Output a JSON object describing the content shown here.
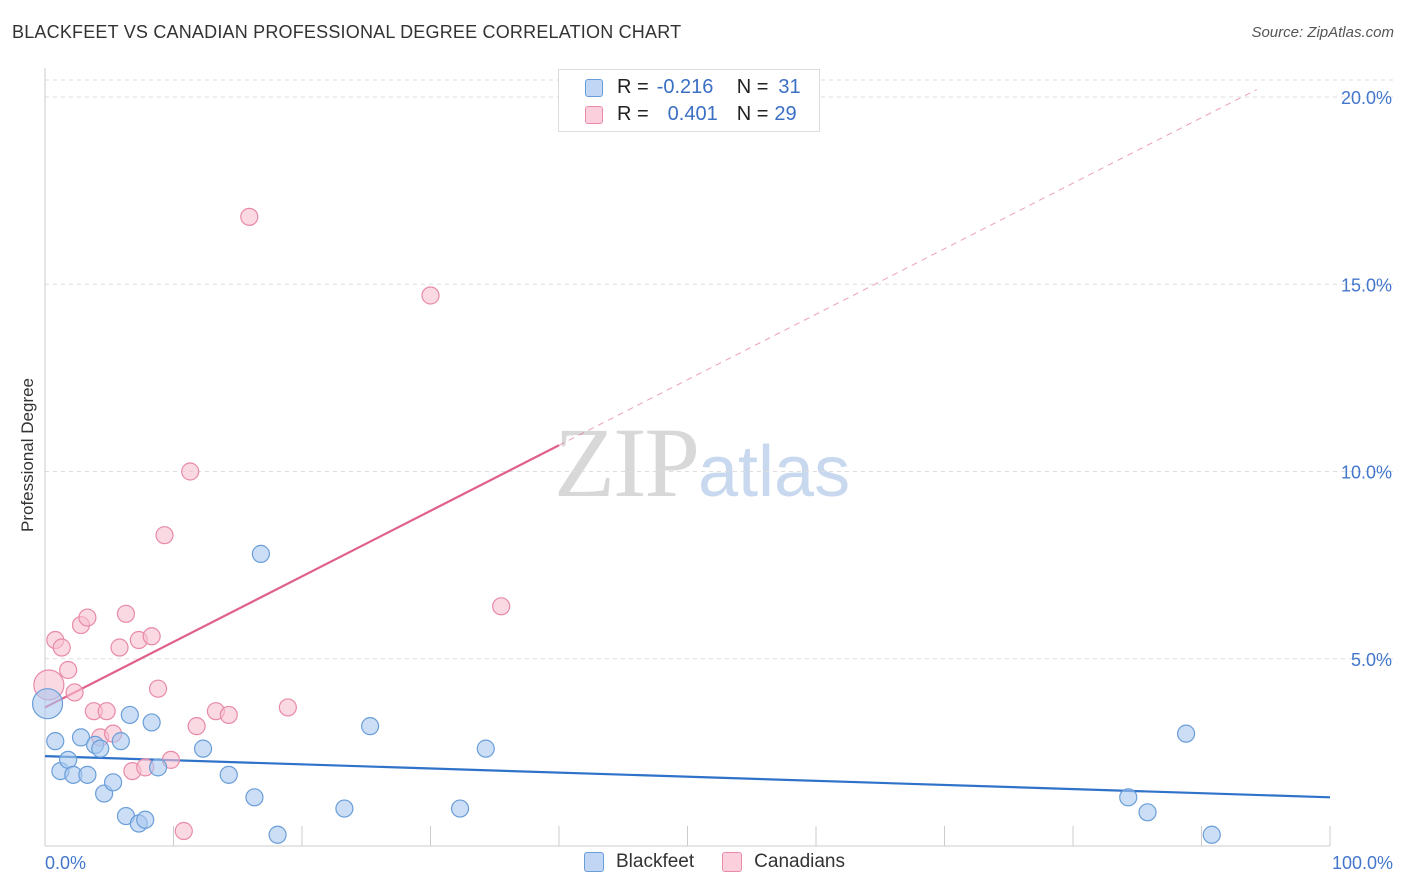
{
  "header": {
    "title": "BLACKFEET VS CANADIAN PROFESSIONAL DEGREE CORRELATION CHART",
    "source": "Source: ZipAtlas.com"
  },
  "watermark": {
    "zip": "ZIP",
    "atlas": "atlas"
  },
  "legend": {
    "rows": [
      {
        "r_label": "R =",
        "r_value": "-0.216",
        "n_label": "N =",
        "n_value": "31",
        "color": "#a8c8f0"
      },
      {
        "r_label": "R =",
        "r_value": "0.401",
        "n_label": "N =",
        "n_value": "29",
        "color": "#f8b8cc"
      }
    ]
  },
  "bottom_legend": {
    "blackfeet": "Blackfeet",
    "canadians": "Canadians"
  },
  "colors": {
    "blue_fill": "#a8c8f0",
    "blue_stroke": "#6a9ed8",
    "blue_line": "#2f72c9",
    "pink_fill": "#f8c0d0",
    "pink_stroke": "#e88aa8",
    "pink_line": "#e0608a",
    "grid": "#dddddd",
    "tick_text": "#4477cc"
  },
  "chart_data": {
    "type": "scatter",
    "title": "BLACKFEET VS CANADIAN PROFESSIONAL DEGREE CORRELATION CHART",
    "xlabel": "",
    "ylabel": "Professional Degree",
    "xlim": [
      0,
      100
    ],
    "ylim": [
      0,
      20
    ],
    "x_tick_labels": [
      "0.0%",
      "100.0%"
    ],
    "y_ticks": [
      5,
      10,
      15,
      20
    ],
    "y_tick_labels": [
      "5.0%",
      "10.0%",
      "15.0%",
      "20.0%"
    ],
    "grid": true,
    "series": [
      {
        "name": "Blackfeet",
        "r": -0.216,
        "n": 31,
        "points": [
          [
            0.2,
            3.8
          ],
          [
            0.8,
            2.8
          ],
          [
            1.2,
            2.0
          ],
          [
            1.8,
            2.3
          ],
          [
            2.2,
            1.9
          ],
          [
            2.8,
            2.9
          ],
          [
            3.3,
            1.9
          ],
          [
            3.9,
            2.7
          ],
          [
            4.3,
            2.6
          ],
          [
            4.6,
            1.4
          ],
          [
            5.3,
            1.7
          ],
          [
            5.9,
            2.8
          ],
          [
            6.3,
            0.8
          ],
          [
            6.6,
            3.5
          ],
          [
            7.3,
            0.6
          ],
          [
            7.8,
            0.7
          ],
          [
            8.3,
            3.3
          ],
          [
            8.8,
            2.1
          ],
          [
            12.3,
            2.6
          ],
          [
            14.3,
            1.9
          ],
          [
            16.3,
            1.3
          ],
          [
            16.8,
            7.8
          ],
          [
            18.1,
            0.3
          ],
          [
            23.3,
            1.0
          ],
          [
            25.3,
            3.2
          ],
          [
            32.3,
            1.0
          ],
          [
            34.3,
            2.6
          ],
          [
            84.3,
            1.3
          ],
          [
            85.8,
            0.9
          ],
          [
            88.8,
            3.0
          ],
          [
            90.8,
            0.3
          ]
        ],
        "trend": {
          "x": [
            0,
            100
          ],
          "y": [
            2.4,
            1.3
          ]
        }
      },
      {
        "name": "Canadians",
        "r": 0.401,
        "n": 29,
        "points": [
          [
            0.3,
            4.3
          ],
          [
            0.8,
            5.5
          ],
          [
            1.3,
            5.3
          ],
          [
            1.8,
            4.7
          ],
          [
            2.3,
            4.1
          ],
          [
            2.8,
            5.9
          ],
          [
            3.3,
            6.1
          ],
          [
            3.8,
            3.6
          ],
          [
            4.3,
            2.9
          ],
          [
            4.8,
            3.6
          ],
          [
            5.3,
            3.0
          ],
          [
            5.8,
            5.3
          ],
          [
            6.3,
            6.2
          ],
          [
            6.8,
            2.0
          ],
          [
            7.3,
            5.5
          ],
          [
            7.8,
            2.1
          ],
          [
            8.3,
            5.6
          ],
          [
            8.8,
            4.2
          ],
          [
            9.3,
            8.3
          ],
          [
            9.8,
            2.3
          ],
          [
            10.8,
            0.4
          ],
          [
            11.3,
            10.0
          ],
          [
            11.8,
            3.2
          ],
          [
            13.3,
            3.6
          ],
          [
            14.3,
            3.5
          ],
          [
            15.9,
            16.8
          ],
          [
            18.9,
            3.7
          ],
          [
            30.0,
            14.7
          ],
          [
            35.5,
            6.4
          ]
        ],
        "trend": {
          "x": [
            0,
            40
          ],
          "y": [
            3.7,
            10.7
          ]
        },
        "trend_extension": {
          "x": [
            40,
            94.3
          ],
          "y": [
            10.7,
            20.2
          ]
        }
      }
    ]
  }
}
